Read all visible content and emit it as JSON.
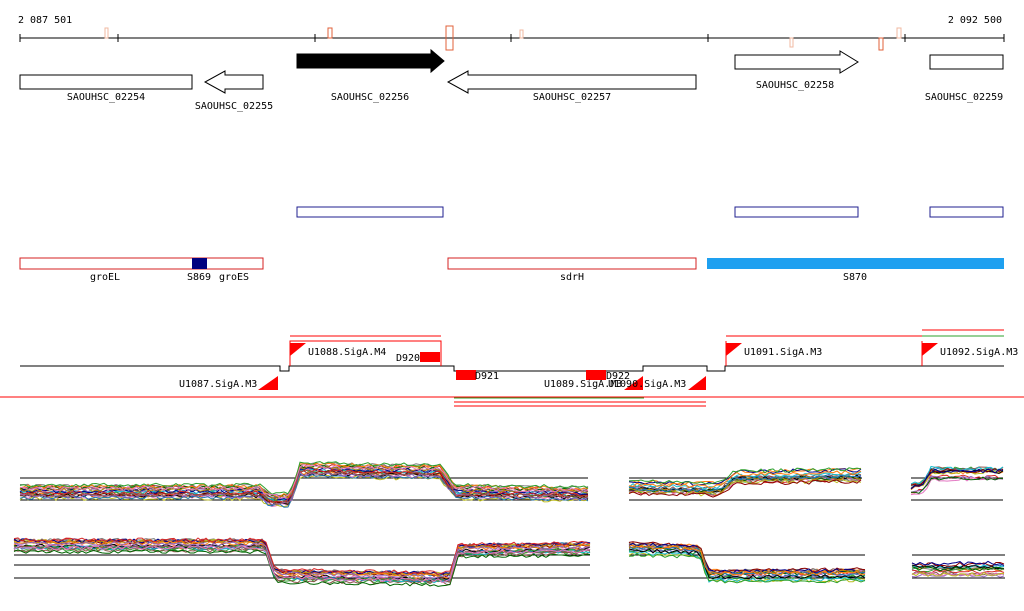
{
  "coordinates": {
    "start": "2 087 501",
    "end": "2 092 500"
  },
  "genes": [
    {
      "label": "SAOUHSC_02254"
    },
    {
      "label": "SAOUHSC_02255"
    },
    {
      "label": "SAOUHSC_02256"
    },
    {
      "label": "SAOUHSC_02257"
    },
    {
      "label": "SAOUHSC_02258"
    },
    {
      "label": "SAOUHSC_02259"
    }
  ],
  "features": [
    {
      "label": "groEL"
    },
    {
      "label": "S869"
    },
    {
      "label": "groES"
    },
    {
      "label": "sdrH"
    },
    {
      "label": "S870"
    }
  ],
  "promoters": [
    {
      "label": "U1088.SigA.M4"
    },
    {
      "label": "D920"
    },
    {
      "label": "U1087.SigA.M3"
    },
    {
      "label": "D921"
    },
    {
      "label": "D922"
    },
    {
      "label": "U1089.SigA.M3"
    },
    {
      "label": "U1090.SigA.M3"
    },
    {
      "label": "U1091.SigA.M3"
    },
    {
      "label": "U1092.SigA.M3"
    }
  ],
  "colors": {
    "gene_fill_forward": "#000000",
    "gene_outline": "#000000",
    "cds_outline": "#1f1f8f",
    "feature_outline": "#d42020",
    "s869_fill": "#00007f",
    "s870_fill": "#1ea0f0",
    "promoter_red": "#ff0000",
    "green_line": "#2ca02c"
  }
}
